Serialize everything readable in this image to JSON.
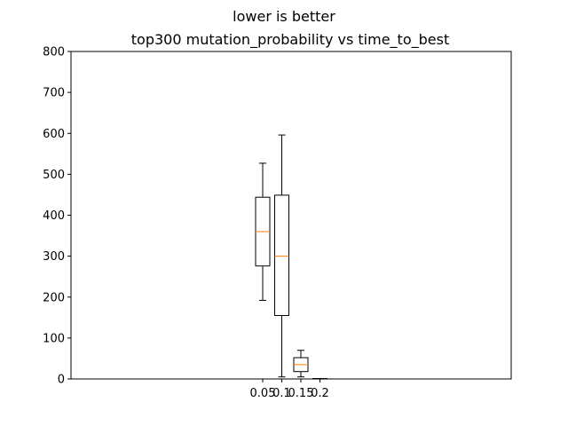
{
  "suptitle": "lower is better",
  "chart_data": {
    "type": "box",
    "title": "top300 mutation_probability vs time_to_best",
    "xlabel": "",
    "ylabel": "",
    "ylim": [
      0,
      800
    ],
    "yticks": [
      0,
      100,
      200,
      300,
      400,
      500,
      600,
      700,
      800
    ],
    "grid": false,
    "categories": [
      "0.05",
      "0.1",
      "0.15",
      "0.2"
    ],
    "boxes": [
      {
        "category": "0.05",
        "whisker_low": 192,
        "q1": 276,
        "median": 360,
        "q3": 444,
        "whisker_high": 527
      },
      {
        "category": "0.1",
        "whisker_low": 5,
        "q1": 155,
        "median": 300,
        "q3": 449,
        "whisker_high": 596
      },
      {
        "category": "0.15",
        "whisker_low": 5,
        "q1": 18,
        "median": 35,
        "q3": 52,
        "whisker_high": 70
      },
      {
        "category": "0.2",
        "whisker_low": 0,
        "q1": 0,
        "median": 0,
        "q3": 1,
        "whisker_high": 1
      }
    ],
    "colors": {
      "box": "#000000",
      "median": "#ff7f0e"
    }
  }
}
